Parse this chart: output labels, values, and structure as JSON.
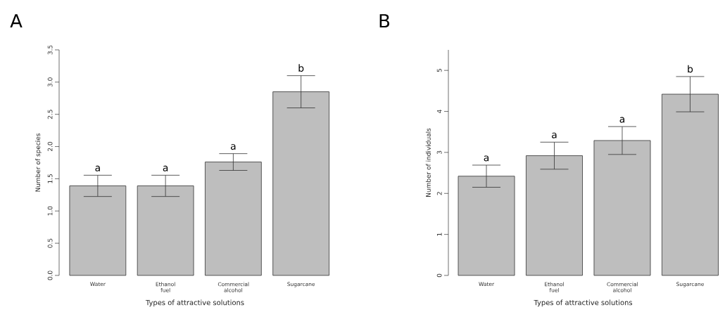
{
  "chart_data": [
    {
      "type": "bar",
      "title": "A",
      "xlabel": "Types of attractive solutions",
      "ylabel": "Number of species",
      "categories": [
        "Water",
        "Ethanol fuel",
        "Commercial alcohol",
        "Sugarcane"
      ],
      "values": [
        1.39,
        1.39,
        1.76,
        2.85
      ],
      "errors": [
        0.165,
        0.165,
        0.13,
        0.25
      ],
      "color": "#bebebe",
      "ylim": [
        0,
        3.5
      ],
      "yticks": [
        {
          "value": 0,
          "label": "0.0"
        },
        0.5,
        {
          "value": 1,
          "label": "1.0"
        },
        1.5,
        {
          "value": 2,
          "label": "2.0"
        },
        2.5,
        {
          "value": 3,
          "label": "3.0"
        },
        3.5
      ],
      "annotations": [
        {
          "text": "a",
          "x": "Water",
          "y": 1.555
        },
        {
          "text": "a",
          "x": "Ethanol fuel",
          "y": 1.555
        },
        {
          "text": "a",
          "x": "Commercial alcohol",
          "y": 1.89
        },
        {
          "text": "b",
          "x": "Sugarcane",
          "y": 3.1
        }
      ]
    },
    {
      "type": "bar",
      "title": "B",
      "xlabel": "Types of attractive solutions",
      "ylabel": "Number of individuals",
      "categories": [
        "Water",
        "Ethanol fuel",
        "Commercial alcohol",
        "Sugarcane"
      ],
      "values": [
        2.42,
        2.92,
        3.29,
        4.42
      ],
      "errors": [
        0.27,
        0.33,
        0.34,
        0.43
      ],
      "color": "#bebebe",
      "ylim": [
        0,
        5.5
      ],
      "yticks": [
        0,
        1,
        2,
        3,
        4,
        5
      ],
      "annotations": [
        {
          "text": "a",
          "x": "Water",
          "y": 2.69
        },
        {
          "text": "a",
          "x": "Ethanol fuel",
          "y": 3.25
        },
        {
          "text": "a",
          "x": "Commercial alcohol",
          "y": 3.63
        },
        {
          "text": "b",
          "x": "Sugarcane",
          "y": 4.85
        }
      ]
    }
  ]
}
